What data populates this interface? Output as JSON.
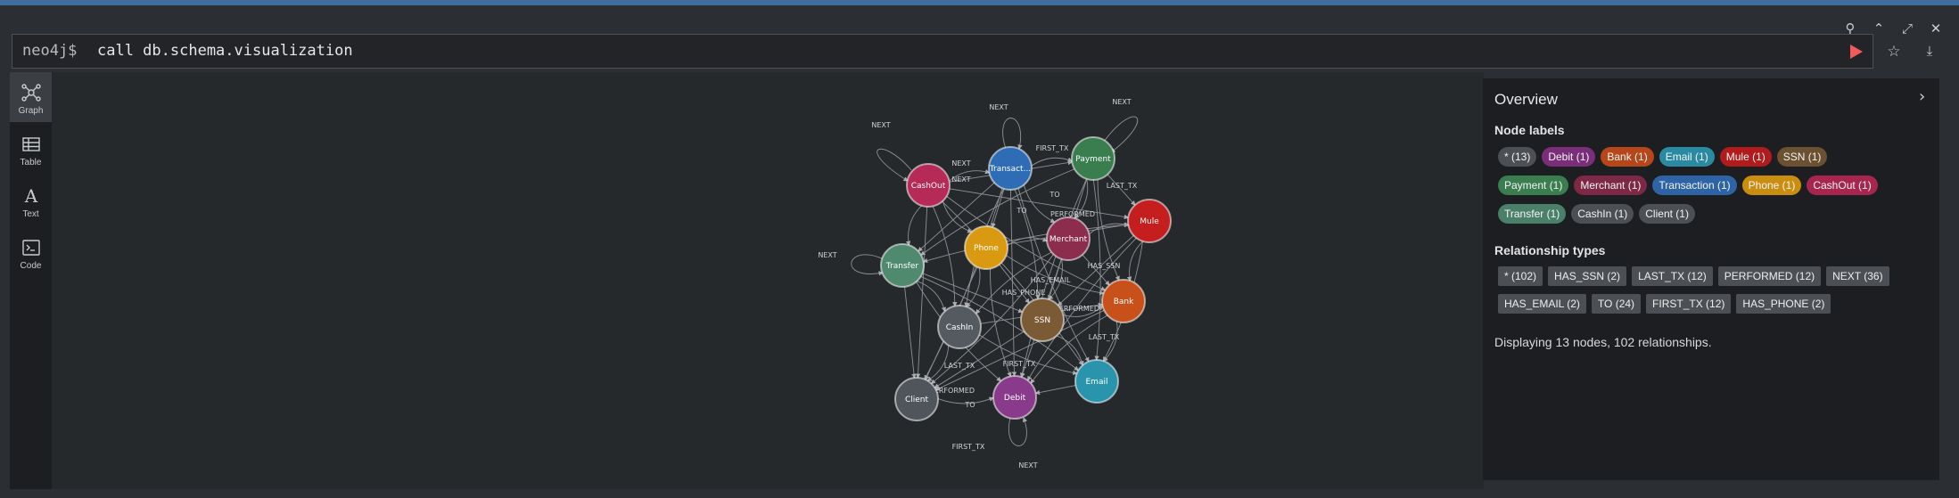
{
  "editor": {
    "prompt": "neo4j$",
    "query": "call db.schema.visualization"
  },
  "window_controls": [
    "pin-icon",
    "collapse-icon",
    "expand-icon",
    "close-icon"
  ],
  "sidebar": {
    "items": [
      {
        "label": "Graph",
        "icon": "graph-icon",
        "active": true
      },
      {
        "label": "Table",
        "icon": "table-icon",
        "active": false
      },
      {
        "label": "Text",
        "icon": "text-icon",
        "active": false
      },
      {
        "label": "Code",
        "icon": "code-icon",
        "active": false
      }
    ]
  },
  "colors": {
    "run": "#f15b5b",
    "accent": "#3f6d9d"
  },
  "graph": {
    "nodes": [
      {
        "label": "CashOut",
        "color": "#b52a57"
      },
      {
        "label": "Transact...",
        "color": "#2e6db5"
      },
      {
        "label": "Payment",
        "color": "#3a7d4f"
      },
      {
        "label": "Phone",
        "color": "#d99a12"
      },
      {
        "label": "Merchant",
        "color": "#8c2d4e"
      },
      {
        "label": "Mule",
        "color": "#c41e1e"
      },
      {
        "label": "Transfer",
        "color": "#4f8a6e"
      },
      {
        "label": "CashIn",
        "color": "#555a60"
      },
      {
        "label": "SSN",
        "color": "#7a5b36"
      },
      {
        "label": "Bank",
        "color": "#c8501b"
      },
      {
        "label": "Email",
        "color": "#2a94ad"
      },
      {
        "label": "Client",
        "color": "#50555b"
      },
      {
        "label": "Debit",
        "color": "#8a3a8a"
      }
    ],
    "edge_labels": [
      "NEXT",
      "NEXT",
      "NEXT",
      "NEXT",
      "NEXT",
      "FIRST_TX",
      "LAST_TX",
      "TO",
      "PERFORMED",
      "HAS_SSN",
      "HAS_EMAIL",
      "HAS_PHONE",
      "FIRST_TX",
      "TO",
      "PERFORMED",
      "LAST_TX",
      "NEXT",
      "NEXT",
      "TO",
      "LAST_TX",
      "PERFORMED",
      "FIRST_TX"
    ]
  },
  "overview": {
    "title": "Overview",
    "node_labels_heading": "Node labels",
    "node_labels": [
      [
        {
          "text": "* (13)",
          "color": "#4c5055"
        },
        {
          "text": "Debit (1)",
          "color": "#7a2e79"
        },
        {
          "text": "Bank (1)",
          "color": "#b5471a"
        },
        {
          "text": "Email (1)",
          "color": "#2a8aa3"
        },
        {
          "text": "Mule (1)",
          "color": "#b11b1b"
        },
        {
          "text": "SSN (1)",
          "color": "#6b5032"
        }
      ],
      [
        {
          "text": "Payment (1)",
          "color": "#3a7d4f"
        },
        {
          "text": "Merchant (1)",
          "color": "#7d2845"
        },
        {
          "text": "Transaction (1)",
          "color": "#2e63a6"
        },
        {
          "text": "Phone (1)",
          "color": "#c98d10"
        },
        {
          "text": "CashOut (1)",
          "color": "#a6264f"
        }
      ],
      [
        {
          "text": "Transfer (1)",
          "color": "#4a806a"
        },
        {
          "text": "CashIn (1)",
          "color": "#4c5055"
        },
        {
          "text": "Client (1)",
          "color": "#4c5055"
        }
      ]
    ],
    "rel_types_heading": "Relationship types",
    "rel_types": [
      [
        "* (102)",
        "HAS_SSN (2)",
        "LAST_TX (12)",
        "PERFORMED (12)",
        "NEXT (36)"
      ],
      [
        "HAS_EMAIL (2)",
        "TO (24)",
        "FIRST_TX (12)",
        "HAS_PHONE (2)"
      ]
    ],
    "summary": "Displaying 13 nodes, 102 relationships."
  }
}
